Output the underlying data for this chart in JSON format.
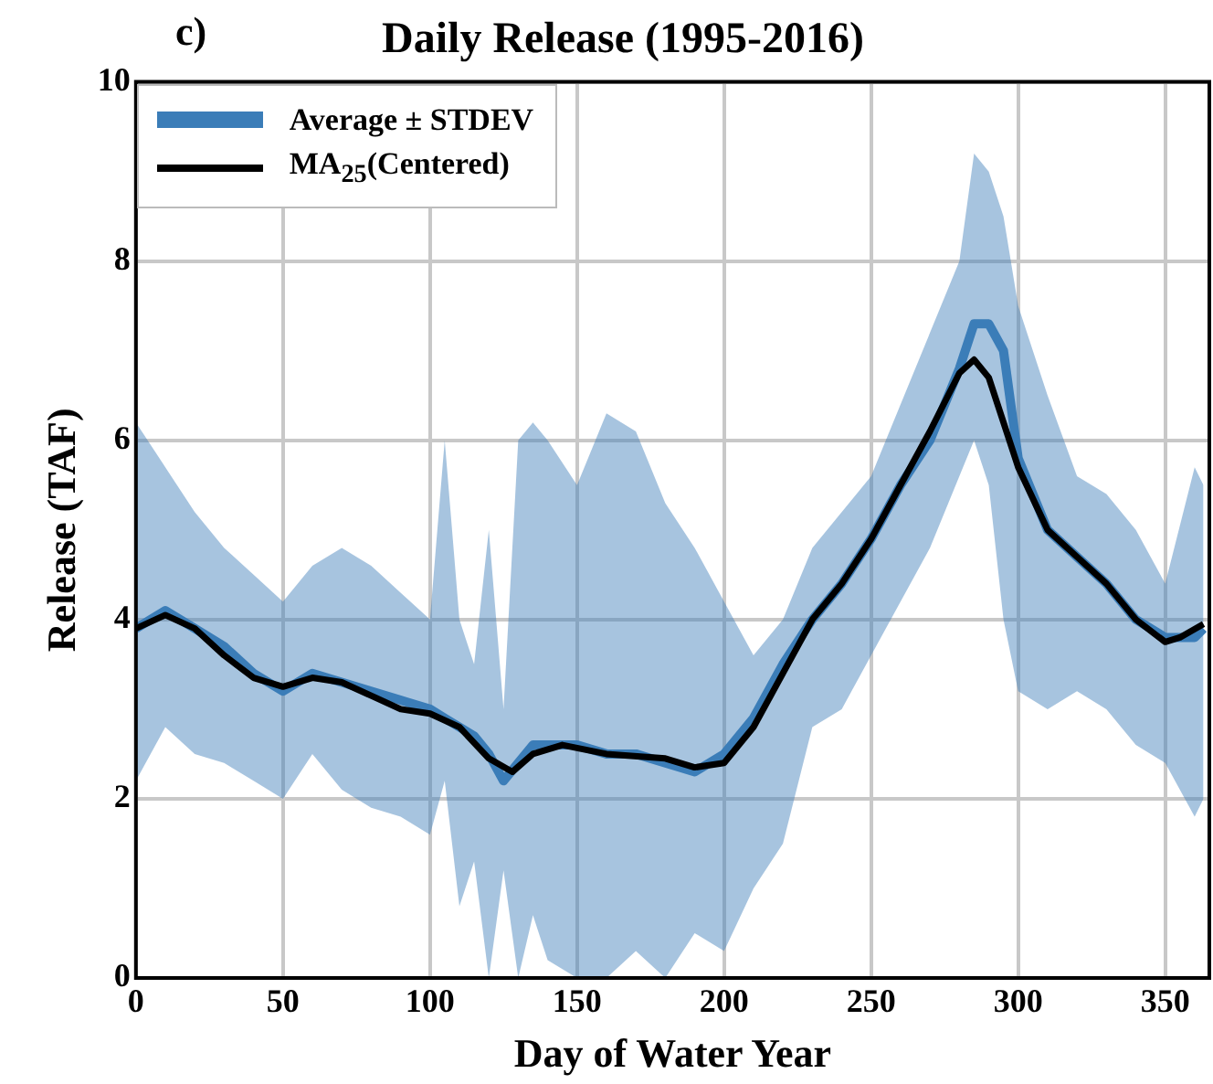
{
  "chart_data": {
    "type": "line",
    "title": "Daily Release (1995-2016)",
    "annotations": [
      "c)"
    ],
    "xlabel": "Day of Water Year",
    "ylabel": "Release (TAF)",
    "xlim": [
      0,
      365
    ],
    "xticks": [
      0,
      50,
      100,
      150,
      200,
      250,
      300,
      350
    ],
    "ylim": [
      0,
      10
    ],
    "yticks": [
      0,
      2,
      4,
      6,
      8,
      10
    ],
    "grid": true,
    "legend": "top left",
    "series": [
      {
        "name": "Average ± STDEV",
        "color": "#3b7db8",
        "x": [
          0,
          10,
          20,
          30,
          40,
          50,
          60,
          70,
          80,
          90,
          100,
          105,
          110,
          115,
          120,
          125,
          130,
          135,
          140,
          150,
          160,
          170,
          180,
          190,
          200,
          210,
          220,
          230,
          240,
          250,
          260,
          270,
          280,
          285,
          290,
          295,
          300,
          310,
          320,
          330,
          340,
          350,
          360,
          363
        ],
        "values": [
          3.9,
          4.1,
          3.9,
          3.7,
          3.4,
          3.2,
          3.4,
          3.3,
          3.2,
          3.1,
          3.0,
          2.9,
          2.8,
          2.7,
          2.5,
          2.2,
          2.4,
          2.6,
          2.6,
          2.6,
          2.5,
          2.5,
          2.4,
          2.3,
          2.5,
          2.9,
          3.5,
          4.0,
          4.4,
          4.9,
          5.5,
          6.0,
          6.8,
          7.3,
          7.3,
          7.0,
          5.8,
          5.0,
          4.7,
          4.4,
          4.0,
          3.8,
          3.8,
          3.9
        ],
        "lower": [
          2.2,
          2.8,
          2.5,
          2.4,
          2.2,
          2.0,
          2.5,
          2.1,
          1.9,
          1.8,
          1.6,
          2.2,
          0.8,
          1.3,
          0,
          1.2,
          0,
          0.7,
          0.2,
          0,
          0,
          0.3,
          0,
          0.5,
          0.3,
          1.0,
          1.5,
          2.8,
          3.0,
          3.6,
          4.2,
          4.8,
          5.6,
          6.0,
          5.5,
          4.0,
          3.2,
          3.0,
          3.2,
          3.0,
          2.6,
          2.4,
          1.8,
          2.0
        ],
        "upper": [
          6.2,
          5.7,
          5.2,
          4.8,
          4.5,
          4.2,
          4.6,
          4.8,
          4.6,
          4.3,
          4.0,
          6.0,
          4.0,
          3.5,
          5.0,
          3.0,
          6.0,
          6.2,
          6.0,
          5.5,
          6.3,
          6.1,
          5.3,
          4.8,
          4.2,
          3.6,
          4.0,
          4.8,
          5.2,
          5.6,
          6.4,
          7.2,
          8.0,
          9.2,
          9.0,
          8.5,
          7.5,
          6.5,
          5.6,
          5.4,
          5.0,
          4.4,
          5.7,
          5.5
        ]
      },
      {
        "name": "MA$_{25}$(Centered)",
        "color": "#000000",
        "x": [
          0,
          10,
          20,
          30,
          40,
          50,
          60,
          70,
          80,
          90,
          100,
          110,
          120,
          128,
          135,
          145,
          160,
          180,
          190,
          200,
          210,
          220,
          230,
          240,
          250,
          260,
          270,
          280,
          285,
          290,
          300,
          310,
          320,
          330,
          340,
          350,
          355,
          363
        ],
        "values": [
          3.9,
          4.05,
          3.9,
          3.6,
          3.35,
          3.25,
          3.35,
          3.3,
          3.15,
          3.0,
          2.95,
          2.8,
          2.45,
          2.3,
          2.5,
          2.6,
          2.5,
          2.45,
          2.35,
          2.4,
          2.8,
          3.4,
          4.0,
          4.4,
          4.9,
          5.5,
          6.1,
          6.75,
          6.9,
          6.7,
          5.7,
          5.0,
          4.7,
          4.4,
          4.0,
          3.75,
          3.8,
          3.95
        ]
      }
    ]
  }
}
